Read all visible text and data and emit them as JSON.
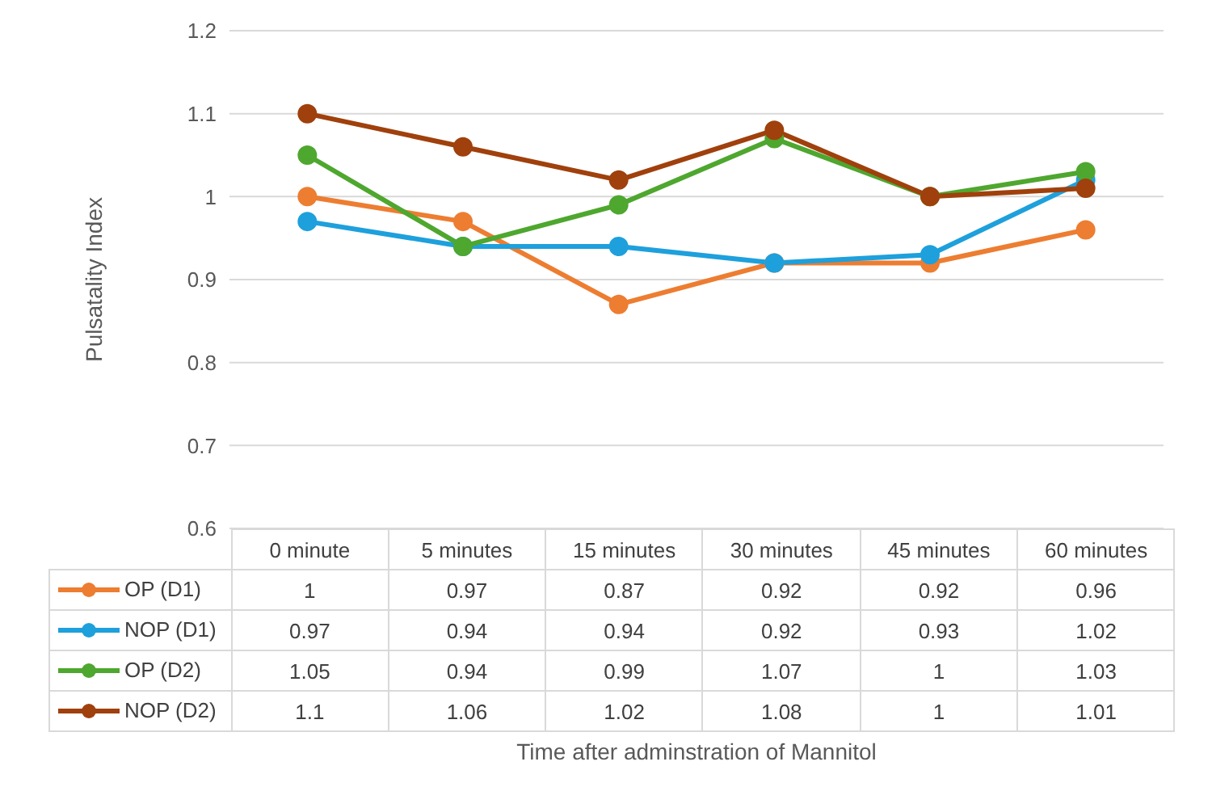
{
  "chart_data": {
    "type": "line",
    "annotations": [
      "Time after adminstration of Mannitol"
    ],
    "ylabel": "Pulsatality Index",
    "categories": [
      "0 minute",
      "5 minutes",
      "15 minutes",
      "30 minutes",
      "45 minutes",
      "60 minutes"
    ],
    "series": [
      {
        "name": "OP (D1)",
        "color": "#ed7d31",
        "values": [
          1,
          0.97,
          0.87,
          0.92,
          0.92,
          0.96
        ]
      },
      {
        "name": "NOP (D1)",
        "color": "#1ea0dc",
        "values": [
          0.97,
          0.94,
          0.94,
          0.92,
          0.93,
          1.02
        ]
      },
      {
        "name": "OP (D2)",
        "color": "#4ea72e",
        "values": [
          1.05,
          0.94,
          0.99,
          1.07,
          1,
          1.03
        ]
      },
      {
        "name": "NOP (D2)",
        "color": "#a0400c",
        "values": [
          1.1,
          1.06,
          1.02,
          1.08,
          1,
          1.01
        ]
      }
    ],
    "ylim": [
      0.6,
      1.2
    ],
    "yticks": [
      0.6,
      0.7,
      0.8,
      0.9,
      1,
      1.1,
      1.2
    ],
    "grid": "y",
    "legend": "bottom",
    "data_labels": true,
    "marker": "circle",
    "line_style": "solid"
  }
}
